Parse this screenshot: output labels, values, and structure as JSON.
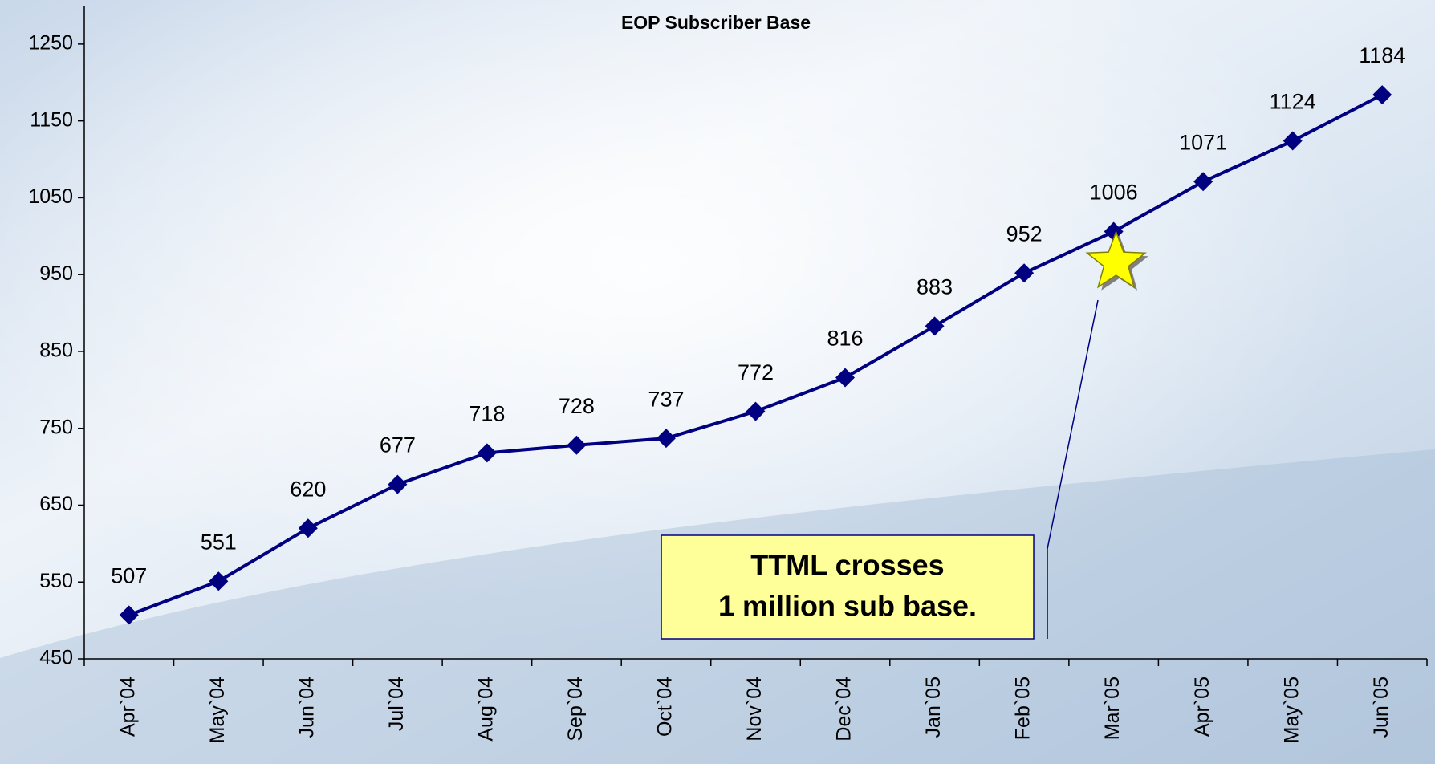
{
  "chart_data": {
    "type": "line",
    "title": "EOP Subscriber Base",
    "categories": [
      "Apr`04",
      "May`04",
      "Jun`04",
      "Jul`04",
      "Aug`04",
      "Sep`04",
      "Oct`04",
      "Nov`04",
      "Dec`04",
      "Jan`05",
      "Feb`05",
      "Mar`05",
      "Apr`05",
      "May`05",
      "Jun`05"
    ],
    "values": [
      507,
      551,
      620,
      677,
      718,
      728,
      737,
      772,
      816,
      883,
      952,
      1006,
      1071,
      1124,
      1184
    ],
    "color": "#000080",
    "ylim": [
      450,
      1300
    ],
    "yticks": [
      450,
      550,
      650,
      750,
      850,
      950,
      1050,
      1150,
      1250
    ],
    "annotation": [
      "TTML crosses",
      "1 million sub base."
    ]
  }
}
